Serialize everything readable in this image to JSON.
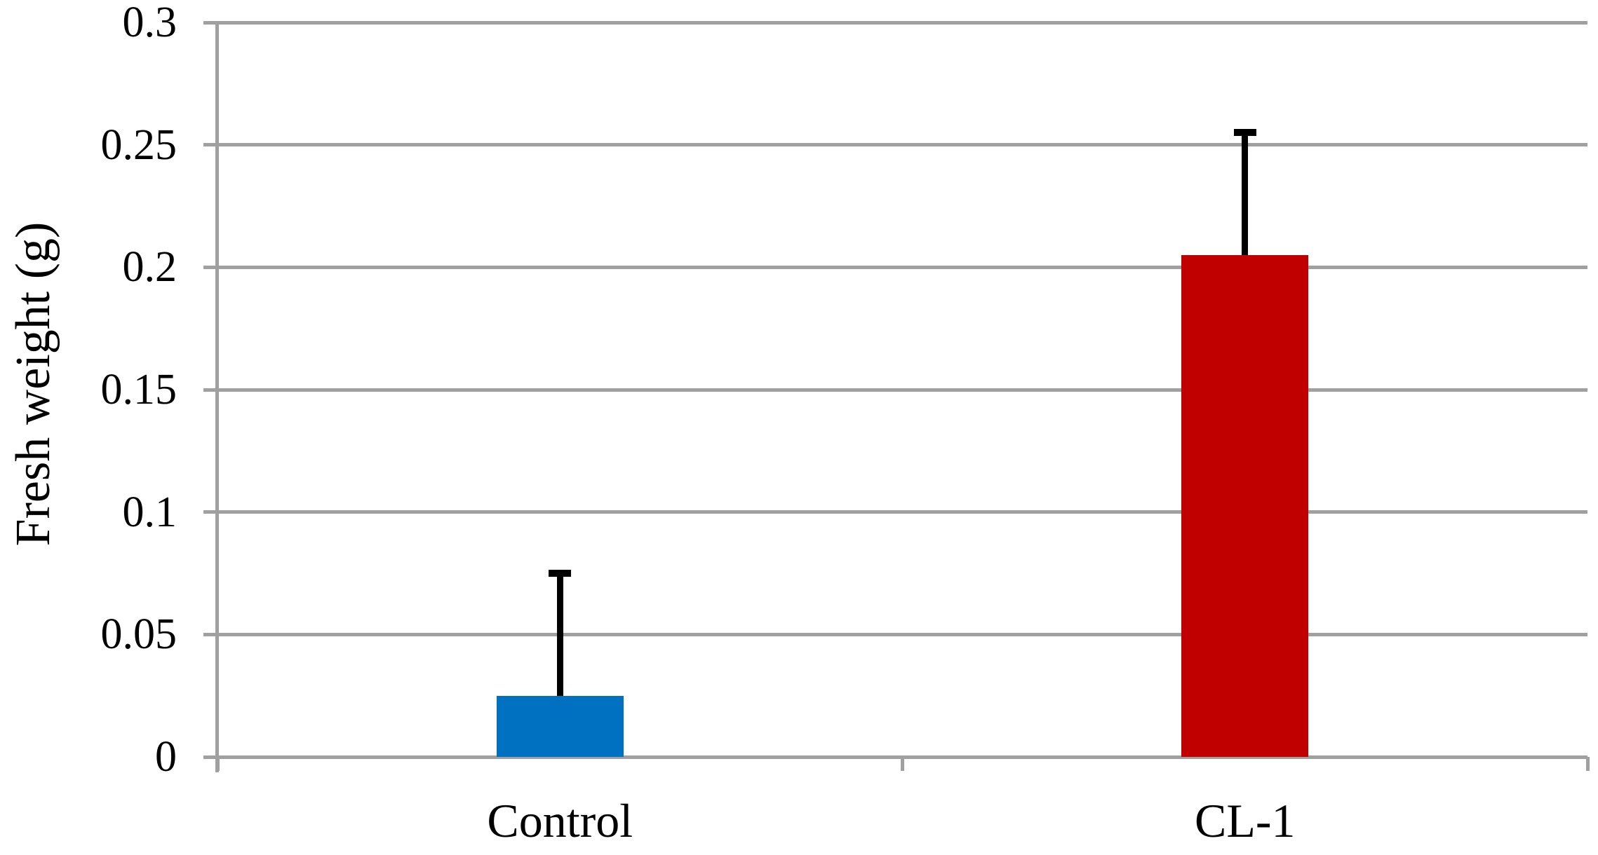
{
  "chart_data": {
    "type": "bar",
    "title": "",
    "xlabel": "",
    "ylabel": "Fresh weight (g)",
    "categories": [
      "Control",
      "CL-1"
    ],
    "series": [
      {
        "name": "Fresh weight",
        "values": [
          0.025,
          0.205
        ],
        "errors_plus": [
          0.05,
          0.05
        ]
      }
    ],
    "bar_colors": [
      "#0070C0",
      "#C00000"
    ],
    "ylim": [
      0,
      0.3
    ],
    "yticks": [
      0,
      0.05,
      0.1,
      0.15,
      0.2,
      0.25,
      0.3
    ],
    "ytick_labels": [
      "0",
      "0.05",
      "0.1",
      "0.15",
      "0.2",
      "0.25",
      "0.3"
    ],
    "grid": "horizontal gridlines on",
    "legend": "none",
    "colors": {
      "grid_and_axis": "#A0A0A0",
      "error_bar": "#000000",
      "text": "#000000",
      "background": "#FFFFFF"
    }
  }
}
